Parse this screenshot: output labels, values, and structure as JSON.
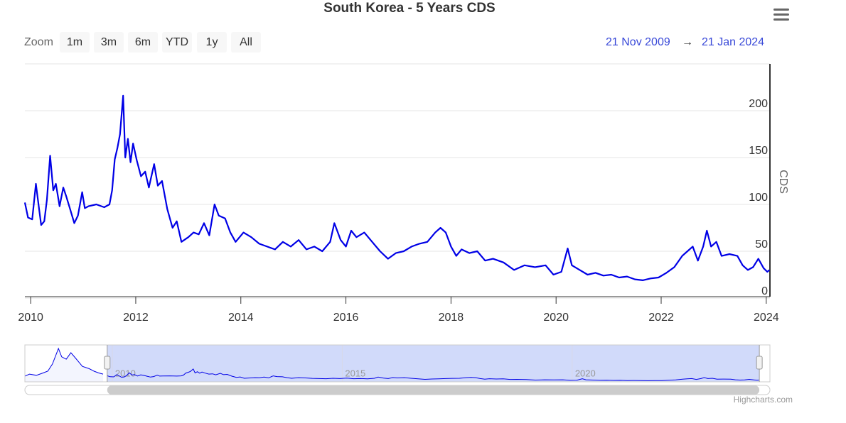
{
  "chart_data": {
    "type": "line",
    "title": "South Korea - 5 Years CDS",
    "y_axis_label": "CDS",
    "zoom_label": "Zoom",
    "zoom_buttons": [
      "1m",
      "3m",
      "6m",
      "YTD",
      "1y",
      "All"
    ],
    "range_start": "21 Nov 2009",
    "range_separator": "→",
    "range_end": "21 Jan 2024",
    "credits": "Highcharts.com",
    "color": "#0000e6",
    "grid": true,
    "xlim": [
      2009.89,
      2024.07
    ],
    "xticks": [
      2010,
      2012,
      2014,
      2016,
      2018,
      2020,
      2022,
      2024
    ],
    "ylim": [
      0,
      250
    ],
    "yticks": [
      0,
      50,
      100,
      150,
      200
    ],
    "x": [
      2009.89,
      2009.95,
      2010.03,
      2010.1,
      2010.16,
      2010.2,
      2010.26,
      2010.31,
      2010.37,
      2010.43,
      2010.48,
      2010.55,
      2010.62,
      2010.68,
      2010.75,
      2010.83,
      2010.9,
      2010.98,
      2011.03,
      2011.1,
      2011.25,
      2011.4,
      2011.5,
      2011.55,
      2011.6,
      2011.65,
      2011.7,
      2011.76,
      2011.8,
      2011.85,
      2011.9,
      2011.95,
      2012.02,
      2012.1,
      2012.18,
      2012.25,
      2012.35,
      2012.42,
      2012.5,
      2012.6,
      2012.7,
      2012.78,
      2012.87,
      2013.0,
      2013.1,
      2013.2,
      2013.3,
      2013.4,
      2013.5,
      2013.58,
      2013.7,
      2013.8,
      2013.9,
      2014.05,
      2014.2,
      2014.35,
      2014.5,
      2014.65,
      2014.8,
      2014.95,
      2015.1,
      2015.25,
      2015.4,
      2015.55,
      2015.7,
      2015.78,
      2015.9,
      2016.0,
      2016.1,
      2016.2,
      2016.35,
      2016.5,
      2016.65,
      2016.8,
      2016.95,
      2017.1,
      2017.25,
      2017.4,
      2017.55,
      2017.7,
      2017.8,
      2017.9,
      2018.0,
      2018.1,
      2018.2,
      2018.35,
      2018.5,
      2018.65,
      2018.8,
      2019.0,
      2019.2,
      2019.4,
      2019.6,
      2019.8,
      2019.95,
      2020.1,
      2020.22,
      2020.3,
      2020.45,
      2020.6,
      2020.75,
      2020.9,
      2021.05,
      2021.2,
      2021.35,
      2021.5,
      2021.65,
      2021.8,
      2021.95,
      2022.1,
      2022.25,
      2022.4,
      2022.5,
      2022.6,
      2022.7,
      2022.8,
      2022.87,
      2022.95,
      2023.05,
      2023.15,
      2023.3,
      2023.45,
      2023.55,
      2023.65,
      2023.75,
      2023.85,
      2023.95,
      2024.02,
      2024.06
    ],
    "values": [
      102,
      86,
      84,
      122,
      95,
      78,
      82,
      105,
      152,
      115,
      122,
      98,
      118,
      108,
      95,
      80,
      88,
      113,
      96,
      98,
      100,
      97,
      100,
      115,
      148,
      160,
      175,
      216,
      150,
      170,
      145,
      165,
      147,
      130,
      135,
      118,
      143,
      120,
      125,
      95,
      75,
      82,
      60,
      65,
      70,
      68,
      80,
      67,
      100,
      88,
      85,
      70,
      60,
      70,
      65,
      58,
      55,
      52,
      60,
      55,
      62,
      52,
      55,
      50,
      60,
      80,
      62,
      55,
      72,
      65,
      70,
      60,
      50,
      42,
      48,
      50,
      55,
      58,
      60,
      70,
      75,
      70,
      55,
      45,
      52,
      48,
      50,
      40,
      42,
      38,
      30,
      35,
      33,
      35,
      25,
      28,
      53,
      35,
      30,
      25,
      27,
      24,
      25,
      22,
      23,
      20,
      19,
      21,
      22,
      27,
      33,
      45,
      50,
      55,
      40,
      55,
      72,
      55,
      60,
      45,
      47,
      45,
      35,
      30,
      33,
      42,
      32,
      28,
      30
    ],
    "navigator": {
      "xlim": [
        2008.1,
        2024.3
      ],
      "ylim": [
        0,
        620
      ],
      "xticks": [
        2010,
        2015,
        2020
      ],
      "x": [
        2008.1,
        2008.2,
        2008.35,
        2008.5,
        2008.6,
        2008.7,
        2008.83,
        2008.9,
        2009.0,
        2009.1,
        2009.2,
        2009.35,
        2009.5,
        2009.6,
        2009.7,
        2009.8
      ],
      "values": [
        95,
        130,
        110,
        150,
        180,
        300,
        560,
        420,
        380,
        490,
        400,
        260,
        220,
        180,
        150,
        130
      ]
    }
  }
}
